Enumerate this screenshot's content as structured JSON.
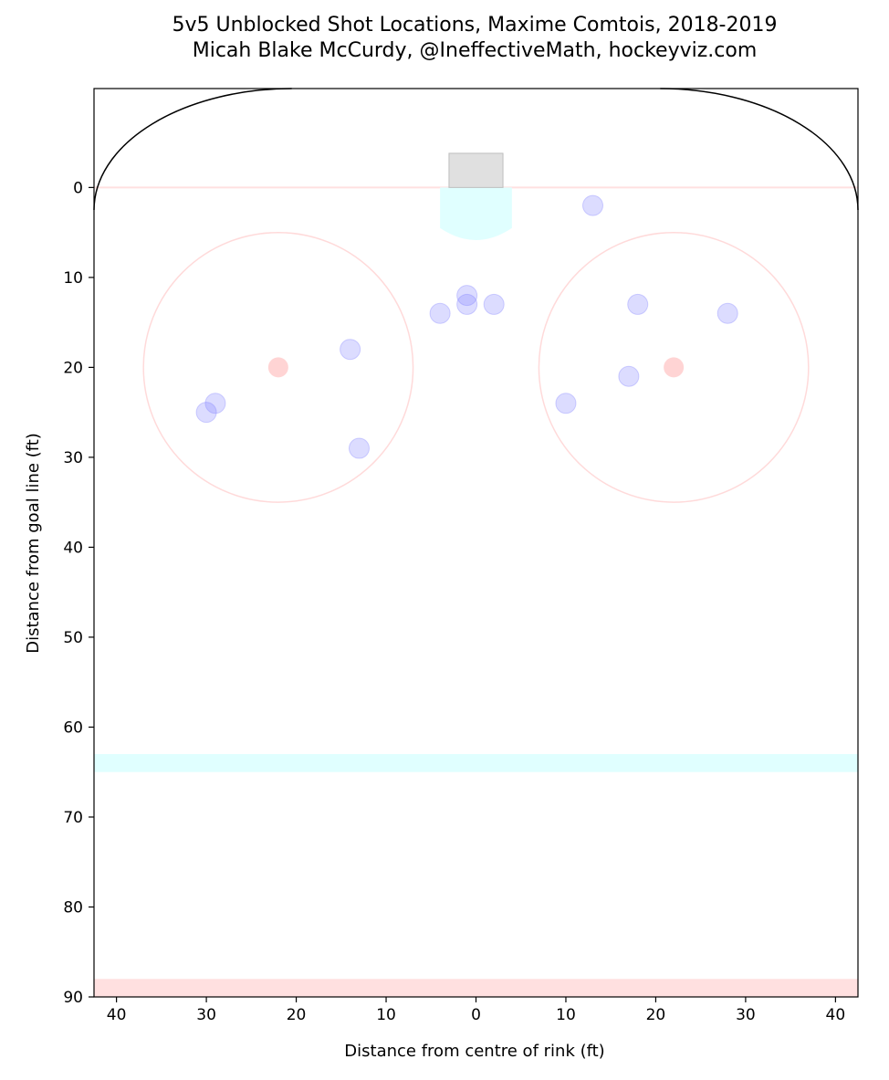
{
  "chart_data": {
    "type": "scatter",
    "title": "5v5 Unblocked Shot Locations, Maxime Comtois, 2018-2019",
    "subtitle": "Micah Blake McCurdy, @IneffectiveMath, hockeyviz.com",
    "xlabel": "Distance from centre of rink (ft)",
    "ylabel": "Distance from goal line (ft)",
    "xlim": [
      42.5,
      -42.5
    ],
    "ylim": [
      90,
      -11
    ],
    "x_ticks": [
      40,
      30,
      20,
      10,
      0,
      10,
      20,
      30,
      40
    ],
    "y_ticks": [
      0,
      10,
      20,
      30,
      40,
      50,
      60,
      70,
      80,
      90
    ],
    "grid": false,
    "series": [
      {
        "color": "#8080ff",
        "points": [
          {
            "x": -13,
            "y": 2
          },
          {
            "x": -18,
            "y": 13
          },
          {
            "x": -28,
            "y": 14
          },
          {
            "x": -17,
            "y": 21
          },
          {
            "x": -10,
            "y": 24
          },
          {
            "x": 1,
            "y": 12
          },
          {
            "x": 1,
            "y": 13
          },
          {
            "x": -2,
            "y": 13
          },
          {
            "x": 4,
            "y": 14
          },
          {
            "x": 14,
            "y": 18
          },
          {
            "x": 29,
            "y": 24
          },
          {
            "x": 30,
            "y": 25
          },
          {
            "x": 13,
            "y": 29
          }
        ]
      }
    ],
    "rink": {
      "board_color": "#000000",
      "goal_line_color": "#ffe0e0",
      "faceoff_circle_color": "#ffdada",
      "faceoff_dot_color": "#ffb0b0",
      "crease_color": "#e0ffff",
      "net_color": "#e0e0e0",
      "blue_line_color": "#e0ffff",
      "red_line_color": "#ffe0e0",
      "faceoff_dots": [
        {
          "x": 22,
          "y": 20
        },
        {
          "x": -22,
          "y": 20
        }
      ]
    }
  }
}
